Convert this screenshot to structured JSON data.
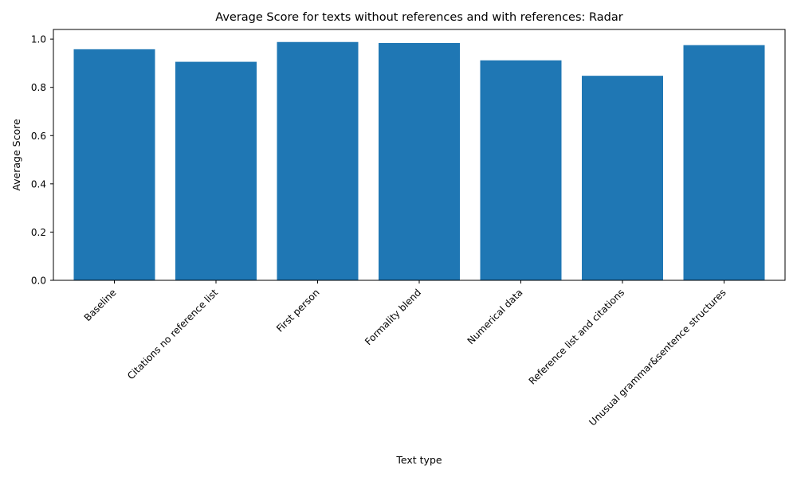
{
  "chart_data": {
    "type": "bar",
    "title": "Average Score for texts without references and with references: Radar",
    "xlabel": "Text type",
    "ylabel": "Average Score",
    "categories": [
      "Baseline",
      "Citations no reference list",
      "First person",
      "Formality blend",
      "Numerical data",
      "Reference list and citations",
      "Unusual grammar&sentence structures"
    ],
    "values": [
      0.958,
      0.906,
      0.988,
      0.984,
      0.912,
      0.848,
      0.975
    ],
    "ylim": [
      0,
      1.04
    ],
    "yticks": [
      0.0,
      0.2,
      0.4,
      0.6,
      0.8,
      1.0
    ],
    "ytick_labels": [
      "0.0",
      "0.2",
      "0.4",
      "0.6",
      "0.8",
      "1.0"
    ],
    "bar_color": "#1f77b4",
    "grid": false,
    "legend": "none"
  }
}
